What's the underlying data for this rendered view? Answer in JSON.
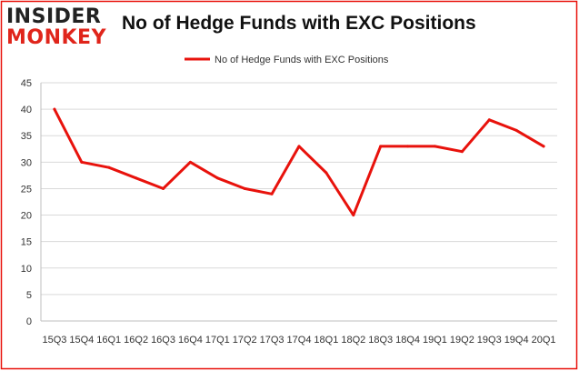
{
  "logo": {
    "line1": "INSIDER",
    "line2": "MONKEY"
  },
  "chart_data": {
    "type": "line",
    "title": "No of Hedge Funds with EXC Positions",
    "categories": [
      "15Q3",
      "15Q4",
      "16Q1",
      "16Q2",
      "16Q3",
      "16Q4",
      "17Q1",
      "17Q2",
      "17Q3",
      "17Q4",
      "18Q1",
      "18Q2",
      "18Q3",
      "18Q4",
      "19Q1",
      "19Q2",
      "19Q3",
      "19Q4",
      "20Q1"
    ],
    "series": [
      {
        "name": "No of Hedge Funds with EXC Positions",
        "values": [
          40,
          30,
          29,
          27,
          25,
          30,
          27,
          25,
          24,
          33,
          28,
          20,
          33,
          33,
          33,
          32,
          38,
          36,
          33
        ]
      }
    ],
    "ylim": [
      0,
      45
    ],
    "yticks": [
      0,
      5,
      10,
      15,
      20,
      25,
      30,
      35,
      40,
      45
    ],
    "grid": true,
    "legend": "top-center",
    "colors": {
      "line": "#e8120c",
      "grid": "#d9d9d9",
      "border": "#e8120c"
    }
  }
}
